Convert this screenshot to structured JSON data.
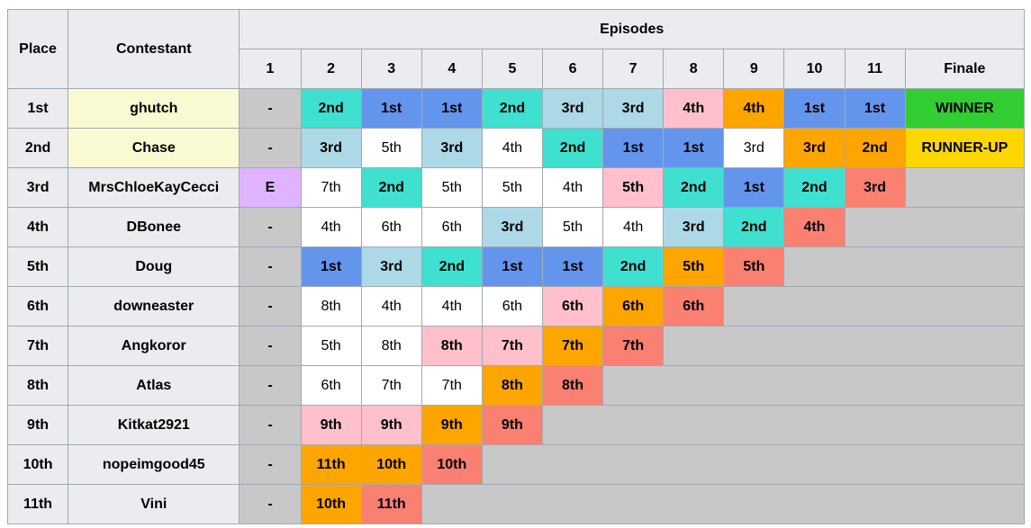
{
  "table": {
    "header": {
      "place": "Place",
      "contestant": "Contestant",
      "episodes": "Episodes",
      "columns": [
        "1",
        "2",
        "3",
        "4",
        "5",
        "6",
        "7",
        "8",
        "9",
        "10",
        "11",
        "Finale"
      ]
    },
    "header_color": "#eaecf0",
    "filler_color": "#c8c8c8",
    "rows": [
      {
        "place": "1st",
        "contestant": "ghutch",
        "contestant_color": "#fafad2",
        "results": [
          "-",
          "2nd",
          "1st",
          "1st",
          "2nd",
          "3rd",
          "3rd",
          "4th",
          "4th",
          "1st",
          "1st",
          "WINNER"
        ],
        "colors": [
          "#c8c8c8",
          "#40e0d0",
          "#6495ed",
          "#6495ed",
          "#40e0d0",
          "#add8e6",
          "#add8e6",
          "#ffc0cb",
          "#ffa500",
          "#6495ed",
          "#6495ed",
          "#32cd32"
        ]
      },
      {
        "place": "2nd",
        "contestant": "Chase",
        "contestant_color": "#fafad2",
        "results": [
          "-",
          "3rd",
          "5th",
          "3rd",
          "4th",
          "2nd",
          "1st",
          "1st",
          "3rd",
          "3rd",
          "2nd",
          "RUNNER-UP"
        ],
        "colors": [
          "#c8c8c8",
          "#add8e6",
          "#ffffff",
          "#add8e6",
          "#ffffff",
          "#40e0d0",
          "#6495ed",
          "#6495ed",
          "#ffffff",
          "#ffa500",
          "#ffa500",
          "#ffd700"
        ]
      },
      {
        "place": "3rd",
        "contestant": "MrsChloeKayCecci",
        "contestant_color": "#eaecf0",
        "results": [
          "E",
          "7th",
          "2nd",
          "5th",
          "5th",
          "4th",
          "5th",
          "2nd",
          "1st",
          "2nd",
          "3rd"
        ],
        "colors": [
          "#dfb3ff",
          "#ffffff",
          "#40e0d0",
          "#ffffff",
          "#ffffff",
          "#ffffff",
          "#ffc0cb",
          "#40e0d0",
          "#6495ed",
          "#40e0d0",
          "#fa8072"
        ]
      },
      {
        "place": "4th",
        "contestant": "DBonee",
        "contestant_color": "#eaecf0",
        "results": [
          "-",
          "4th",
          "6th",
          "6th",
          "3rd",
          "5th",
          "4th",
          "3rd",
          "2nd",
          "4th"
        ],
        "colors": [
          "#c8c8c8",
          "#ffffff",
          "#ffffff",
          "#ffffff",
          "#add8e6",
          "#ffffff",
          "#ffffff",
          "#add8e6",
          "#40e0d0",
          "#fa8072"
        ]
      },
      {
        "place": "5th",
        "contestant": "Doug",
        "contestant_color": "#eaecf0",
        "results": [
          "-",
          "1st",
          "3rd",
          "2nd",
          "1st",
          "1st",
          "2nd",
          "5th",
          "5th"
        ],
        "colors": [
          "#c8c8c8",
          "#6495ed",
          "#add8e6",
          "#40e0d0",
          "#6495ed",
          "#6495ed",
          "#40e0d0",
          "#ffa500",
          "#fa8072"
        ]
      },
      {
        "place": "6th",
        "contestant": "downeaster",
        "contestant_color": "#eaecf0",
        "results": [
          "-",
          "8th",
          "4th",
          "4th",
          "6th",
          "6th",
          "6th",
          "6th"
        ],
        "colors": [
          "#c8c8c8",
          "#ffffff",
          "#ffffff",
          "#ffffff",
          "#ffffff",
          "#ffc0cb",
          "#ffa500",
          "#fa8072"
        ]
      },
      {
        "place": "7th",
        "contestant": "Angkoror",
        "contestant_color": "#eaecf0",
        "results": [
          "-",
          "5th",
          "8th",
          "8th",
          "7th",
          "7th",
          "7th"
        ],
        "colors": [
          "#c8c8c8",
          "#ffffff",
          "#ffffff",
          "#ffc0cb",
          "#ffc0cb",
          "#ffa500",
          "#fa8072"
        ]
      },
      {
        "place": "8th",
        "contestant": "Atlas",
        "contestant_color": "#eaecf0",
        "results": [
          "-",
          "6th",
          "7th",
          "7th",
          "8th",
          "8th"
        ],
        "colors": [
          "#c8c8c8",
          "#ffffff",
          "#ffffff",
          "#ffffff",
          "#ffa500",
          "#fa8072"
        ]
      },
      {
        "place": "9th",
        "contestant": "Kitkat2921",
        "contestant_color": "#eaecf0",
        "results": [
          "-",
          "9th",
          "9th",
          "9th",
          "9th"
        ],
        "colors": [
          "#c8c8c8",
          "#ffc0cb",
          "#ffc0cb",
          "#ffa500",
          "#fa8072"
        ]
      },
      {
        "place": "10th",
        "contestant": "nopeimgood45",
        "contestant_color": "#eaecf0",
        "results": [
          "-",
          "11th",
          "10th",
          "10th"
        ],
        "colors": [
          "#c8c8c8",
          "#ffa500",
          "#ffa500",
          "#fa8072"
        ]
      },
      {
        "place": "11th",
        "contestant": "Vini",
        "contestant_color": "#eaecf0",
        "results": [
          "-",
          "10th",
          "11th"
        ],
        "colors": [
          "#c8c8c8",
          "#ffa500",
          "#fa8072"
        ]
      }
    ]
  }
}
